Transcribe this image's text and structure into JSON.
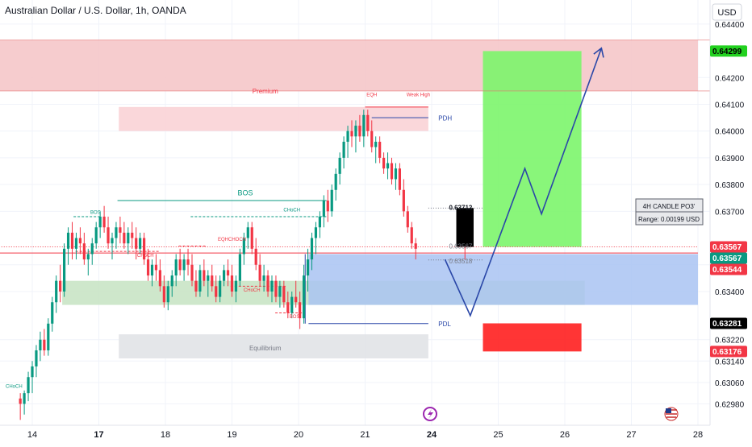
{
  "header": {
    "title": "Australian Dollar / U.S. Dollar, 1h, OANDA",
    "currency_button": "USD"
  },
  "colors": {
    "up": "#089981",
    "down": "#f23645",
    "supply": "#f5c6c9",
    "target": "#7cf56b",
    "stop": "#ff1f1f",
    "demand_blue": "#a9c3f2",
    "demand_green": "#c9e4c5",
    "equilibrium": "#e1e3e7",
    "path": "#2a47a8"
  },
  "chart_data": {
    "type": "candlestick",
    "x_ticks": [
      {
        "t": 0,
        "label": "14"
      },
      {
        "t": 1,
        "label": "17"
      },
      {
        "t": 2,
        "label": "18"
      },
      {
        "t": 3,
        "label": "19"
      },
      {
        "t": 4,
        "label": "20"
      },
      {
        "t": 5,
        "label": "21"
      },
      {
        "t": 6,
        "label": "24"
      },
      {
        "t": 7,
        "label": "25"
      },
      {
        "t": 8,
        "label": "26"
      },
      {
        "t": 9,
        "label": "27"
      },
      {
        "t": 10,
        "label": "28"
      }
    ],
    "y_ticks": [
      0.6298,
      0.6306,
      0.6314,
      0.6322,
      0.634,
      0.635,
      0.637,
      0.638,
      0.639,
      0.64,
      0.641,
      0.642,
      0.644
    ],
    "ylim": [
      0.629,
      0.6449
    ],
    "candles": [
      {
        "t": -0.18,
        "o": 0.63,
        "h": 0.6302,
        "l": 0.6292,
        "c": 0.6298
      },
      {
        "t": -0.12,
        "o": 0.6298,
        "h": 0.6303,
        "l": 0.6294,
        "c": 0.6302
      },
      {
        "t": -0.06,
        "o": 0.6302,
        "h": 0.631,
        "l": 0.6299,
        "c": 0.6308
      },
      {
        "t": 0.0,
        "o": 0.6308,
        "h": 0.6314,
        "l": 0.6302,
        "c": 0.6312
      },
      {
        "t": 0.06,
        "o": 0.6312,
        "h": 0.632,
        "l": 0.6308,
        "c": 0.6318
      },
      {
        "t": 0.12,
        "o": 0.6318,
        "h": 0.6325,
        "l": 0.6314,
        "c": 0.6322
      },
      {
        "t": 0.18,
        "o": 0.6322,
        "h": 0.6326,
        "l": 0.6316,
        "c": 0.6318
      },
      {
        "t": 0.24,
        "o": 0.6318,
        "h": 0.633,
        "l": 0.6316,
        "c": 0.6328
      },
      {
        "t": 0.3,
        "o": 0.6328,
        "h": 0.6338,
        "l": 0.6325,
        "c": 0.6336
      },
      {
        "t": 0.36,
        "o": 0.6336,
        "h": 0.6346,
        "l": 0.6332,
        "c": 0.6344
      },
      {
        "t": 0.42,
        "o": 0.6344,
        "h": 0.635,
        "l": 0.6336,
        "c": 0.634
      },
      {
        "t": 0.48,
        "o": 0.634,
        "h": 0.6358,
        "l": 0.6338,
        "c": 0.6356
      },
      {
        "t": 0.54,
        "o": 0.6356,
        "h": 0.6364,
        "l": 0.635,
        "c": 0.6362
      },
      {
        "t": 0.6,
        "o": 0.6362,
        "h": 0.6366,
        "l": 0.6352,
        "c": 0.6356
      },
      {
        "t": 0.66,
        "o": 0.6356,
        "h": 0.6362,
        "l": 0.6352,
        "c": 0.636
      },
      {
        "t": 0.72,
        "o": 0.636,
        "h": 0.6364,
        "l": 0.6354,
        "c": 0.6358
      },
      {
        "t": 0.78,
        "o": 0.6358,
        "h": 0.6362,
        "l": 0.635,
        "c": 0.6352
      },
      {
        "t": 0.84,
        "o": 0.6352,
        "h": 0.6356,
        "l": 0.6346,
        "c": 0.6354
      },
      {
        "t": 0.9,
        "o": 0.6354,
        "h": 0.636,
        "l": 0.635,
        "c": 0.6358
      },
      {
        "t": 0.96,
        "o": 0.6358,
        "h": 0.6366,
        "l": 0.6356,
        "c": 0.6364
      },
      {
        "t": 1.02,
        "o": 0.6364,
        "h": 0.637,
        "l": 0.636,
        "c": 0.6368
      },
      {
        "t": 1.08,
        "o": 0.6368,
        "h": 0.6372,
        "l": 0.6362,
        "c": 0.6364
      },
      {
        "t": 1.14,
        "o": 0.6364,
        "h": 0.6368,
        "l": 0.6356,
        "c": 0.6358
      },
      {
        "t": 1.2,
        "o": 0.6358,
        "h": 0.6362,
        "l": 0.6352,
        "c": 0.636
      },
      {
        "t": 1.26,
        "o": 0.636,
        "h": 0.6366,
        "l": 0.6356,
        "c": 0.6364
      },
      {
        "t": 1.32,
        "o": 0.6364,
        "h": 0.6368,
        "l": 0.6358,
        "c": 0.6362
      },
      {
        "t": 1.38,
        "o": 0.6362,
        "h": 0.6366,
        "l": 0.6356,
        "c": 0.6358
      },
      {
        "t": 1.44,
        "o": 0.6358,
        "h": 0.6364,
        "l": 0.6354,
        "c": 0.6362
      },
      {
        "t": 1.5,
        "o": 0.6362,
        "h": 0.6366,
        "l": 0.6356,
        "c": 0.636
      },
      {
        "t": 1.56,
        "o": 0.636,
        "h": 0.6364,
        "l": 0.6352,
        "c": 0.6356
      },
      {
        "t": 1.62,
        "o": 0.6356,
        "h": 0.6362,
        "l": 0.6354,
        "c": 0.636
      },
      {
        "t": 1.68,
        "o": 0.636,
        "h": 0.6362,
        "l": 0.635,
        "c": 0.6352
      },
      {
        "t": 1.74,
        "o": 0.6352,
        "h": 0.6356,
        "l": 0.6344,
        "c": 0.6346
      },
      {
        "t": 1.8,
        "o": 0.6346,
        "h": 0.6352,
        "l": 0.6342,
        "c": 0.635
      },
      {
        "t": 1.86,
        "o": 0.635,
        "h": 0.6354,
        "l": 0.6344,
        "c": 0.6348
      },
      {
        "t": 1.92,
        "o": 0.6348,
        "h": 0.6352,
        "l": 0.634,
        "c": 0.6342
      },
      {
        "t": 1.98,
        "o": 0.6342,
        "h": 0.6346,
        "l": 0.6334,
        "c": 0.6336
      },
      {
        "t": 2.04,
        "o": 0.6336,
        "h": 0.6344,
        "l": 0.6333,
        "c": 0.6342
      },
      {
        "t": 2.1,
        "o": 0.6342,
        "h": 0.6348,
        "l": 0.6338,
        "c": 0.6346
      },
      {
        "t": 2.16,
        "o": 0.6346,
        "h": 0.6354,
        "l": 0.6342,
        "c": 0.6352
      },
      {
        "t": 2.22,
        "o": 0.6352,
        "h": 0.6356,
        "l": 0.6346,
        "c": 0.6348
      },
      {
        "t": 2.28,
        "o": 0.6348,
        "h": 0.6354,
        "l": 0.6344,
        "c": 0.6352
      },
      {
        "t": 2.34,
        "o": 0.6352,
        "h": 0.6356,
        "l": 0.6346,
        "c": 0.635
      },
      {
        "t": 2.4,
        "o": 0.635,
        "h": 0.6354,
        "l": 0.6342,
        "c": 0.6344
      },
      {
        "t": 2.46,
        "o": 0.6344,
        "h": 0.6348,
        "l": 0.6338,
        "c": 0.634
      },
      {
        "t": 2.52,
        "o": 0.634,
        "h": 0.635,
        "l": 0.6338,
        "c": 0.6348
      },
      {
        "t": 2.58,
        "o": 0.6348,
        "h": 0.6352,
        "l": 0.6342,
        "c": 0.6344
      },
      {
        "t": 2.64,
        "o": 0.6344,
        "h": 0.6348,
        "l": 0.6338,
        "c": 0.6346
      },
      {
        "t": 2.7,
        "o": 0.6346,
        "h": 0.635,
        "l": 0.634,
        "c": 0.6342
      },
      {
        "t": 2.76,
        "o": 0.6342,
        "h": 0.6346,
        "l": 0.6336,
        "c": 0.6338
      },
      {
        "t": 2.82,
        "o": 0.6338,
        "h": 0.6346,
        "l": 0.6336,
        "c": 0.6344
      },
      {
        "t": 2.88,
        "o": 0.6344,
        "h": 0.635,
        "l": 0.6342,
        "c": 0.6348
      },
      {
        "t": 2.94,
        "o": 0.6348,
        "h": 0.6352,
        "l": 0.6342,
        "c": 0.6346
      },
      {
        "t": 3.0,
        "o": 0.6346,
        "h": 0.635,
        "l": 0.6338,
        "c": 0.634
      },
      {
        "t": 3.06,
        "o": 0.634,
        "h": 0.6346,
        "l": 0.6336,
        "c": 0.6344
      },
      {
        "t": 3.12,
        "o": 0.6344,
        "h": 0.6356,
        "l": 0.6342,
        "c": 0.6354
      },
      {
        "t": 3.18,
        "o": 0.6354,
        "h": 0.6362,
        "l": 0.635,
        "c": 0.636
      },
      {
        "t": 3.24,
        "o": 0.636,
        "h": 0.6366,
        "l": 0.6356,
        "c": 0.6364
      },
      {
        "t": 3.3,
        "o": 0.6364,
        "h": 0.6366,
        "l": 0.6354,
        "c": 0.6356
      },
      {
        "t": 3.36,
        "o": 0.6356,
        "h": 0.636,
        "l": 0.6348,
        "c": 0.635
      },
      {
        "t": 3.42,
        "o": 0.635,
        "h": 0.6354,
        "l": 0.6342,
        "c": 0.6344
      },
      {
        "t": 3.48,
        "o": 0.6344,
        "h": 0.635,
        "l": 0.634,
        "c": 0.6346
      },
      {
        "t": 3.54,
        "o": 0.6346,
        "h": 0.6348,
        "l": 0.6338,
        "c": 0.634
      },
      {
        "t": 3.6,
        "o": 0.634,
        "h": 0.6346,
        "l": 0.6336,
        "c": 0.6344
      },
      {
        "t": 3.66,
        "o": 0.6344,
        "h": 0.6346,
        "l": 0.6336,
        "c": 0.6338
      },
      {
        "t": 3.72,
        "o": 0.6338,
        "h": 0.6344,
        "l": 0.6334,
        "c": 0.6342
      },
      {
        "t": 3.78,
        "o": 0.6342,
        "h": 0.6344,
        "l": 0.6334,
        "c": 0.6336
      },
      {
        "t": 3.84,
        "o": 0.6336,
        "h": 0.634,
        "l": 0.633,
        "c": 0.6332
      },
      {
        "t": 3.9,
        "o": 0.6332,
        "h": 0.634,
        "l": 0.633,
        "c": 0.6338
      },
      {
        "t": 3.96,
        "o": 0.6338,
        "h": 0.6344,
        "l": 0.6334,
        "c": 0.6336
      },
      {
        "t": 4.02,
        "o": 0.6336,
        "h": 0.634,
        "l": 0.6326,
        "c": 0.633
      },
      {
        "t": 4.08,
        "o": 0.633,
        "h": 0.635,
        "l": 0.6328,
        "c": 0.6346
      },
      {
        "t": 4.14,
        "o": 0.6346,
        "h": 0.6356,
        "l": 0.634,
        "c": 0.6352
      },
      {
        "t": 4.2,
        "o": 0.6352,
        "h": 0.6362,
        "l": 0.6348,
        "c": 0.636
      },
      {
        "t": 4.26,
        "o": 0.636,
        "h": 0.6366,
        "l": 0.6354,
        "c": 0.6364
      },
      {
        "t": 4.32,
        "o": 0.6364,
        "h": 0.637,
        "l": 0.636,
        "c": 0.6368
      },
      {
        "t": 4.38,
        "o": 0.6368,
        "h": 0.6376,
        "l": 0.6364,
        "c": 0.6374
      },
      {
        "t": 4.44,
        "o": 0.6374,
        "h": 0.6378,
        "l": 0.6366,
        "c": 0.637
      },
      {
        "t": 4.5,
        "o": 0.637,
        "h": 0.638,
        "l": 0.6368,
        "c": 0.6378
      },
      {
        "t": 4.56,
        "o": 0.6378,
        "h": 0.6386,
        "l": 0.6374,
        "c": 0.6384
      },
      {
        "t": 4.62,
        "o": 0.6384,
        "h": 0.6392,
        "l": 0.638,
        "c": 0.639
      },
      {
        "t": 4.68,
        "o": 0.639,
        "h": 0.6398,
        "l": 0.6386,
        "c": 0.6396
      },
      {
        "t": 4.74,
        "o": 0.6396,
        "h": 0.6402,
        "l": 0.639,
        "c": 0.64
      },
      {
        "t": 4.8,
        "o": 0.64,
        "h": 0.6404,
        "l": 0.6394,
        "c": 0.6398
      },
      {
        "t": 4.86,
        "o": 0.6398,
        "h": 0.6404,
        "l": 0.6392,
        "c": 0.6402
      },
      {
        "t": 4.92,
        "o": 0.6402,
        "h": 0.6406,
        "l": 0.6396,
        "c": 0.6398
      },
      {
        "t": 4.98,
        "o": 0.6398,
        "h": 0.6408,
        "l": 0.6394,
        "c": 0.6406
      },
      {
        "t": 5.04,
        "o": 0.6406,
        "h": 0.6408,
        "l": 0.6398,
        "c": 0.64
      },
      {
        "t": 5.1,
        "o": 0.64,
        "h": 0.6404,
        "l": 0.6392,
        "c": 0.6394
      },
      {
        "t": 5.16,
        "o": 0.6394,
        "h": 0.6398,
        "l": 0.6388,
        "c": 0.6396
      },
      {
        "t": 5.22,
        "o": 0.6396,
        "h": 0.6398,
        "l": 0.6388,
        "c": 0.639
      },
      {
        "t": 5.28,
        "o": 0.639,
        "h": 0.6392,
        "l": 0.6384,
        "c": 0.6386
      },
      {
        "t": 5.34,
        "o": 0.6386,
        "h": 0.6392,
        "l": 0.6382,
        "c": 0.6388
      },
      {
        "t": 5.4,
        "o": 0.6388,
        "h": 0.639,
        "l": 0.638,
        "c": 0.6382
      },
      {
        "t": 5.46,
        "o": 0.6382,
        "h": 0.6388,
        "l": 0.6378,
        "c": 0.6386
      },
      {
        "t": 5.52,
        "o": 0.6386,
        "h": 0.6388,
        "l": 0.6376,
        "c": 0.6378
      },
      {
        "t": 5.58,
        "o": 0.6378,
        "h": 0.6382,
        "l": 0.6368,
        "c": 0.637
      },
      {
        "t": 5.64,
        "o": 0.637,
        "h": 0.6372,
        "l": 0.6362,
        "c": 0.6364
      },
      {
        "t": 5.7,
        "o": 0.6364,
        "h": 0.6366,
        "l": 0.6356,
        "c": 0.6358
      },
      {
        "t": 5.76,
        "o": 0.6358,
        "h": 0.636,
        "l": 0.6352,
        "c": 0.6356
      }
    ],
    "current_price": 0.63567,
    "price_labels": [
      {
        "value": 0.64299,
        "text": "0.64299",
        "bg": "#22d11f",
        "fg": "#000000"
      },
      {
        "value": 0.63567,
        "text": "0.63567",
        "bg": "#f23645",
        "fg": "#ffffff"
      },
      {
        "value": 0.63567,
        "text": "0.63567",
        "bg": "#089981",
        "fg": "#ffffff"
      },
      {
        "value": 0.63544,
        "text": "0.63544",
        "bg": "#f23645",
        "fg": "#ffffff"
      },
      {
        "value": 0.63281,
        "text": "0.63281",
        "bg": "#000000",
        "fg": "#ffffff"
      },
      {
        "value": 0.63176,
        "text": "0.63176",
        "bg": "#f23645",
        "fg": "#ffffff"
      }
    ],
    "zones": [
      {
        "name": "supply-zone",
        "t0": -0.5,
        "t1": 10.0,
        "y0": 0.6415,
        "y1": 0.6434,
        "fill": "#f5c6c9"
      },
      {
        "name": "premium-zone",
        "t0": 1.3,
        "t1": 5.95,
        "y0": 0.64,
        "y1": 0.6409,
        "fill": "#f9d3d6"
      },
      {
        "name": "equilibrium-zone",
        "t0": 1.3,
        "t1": 5.95,
        "y0": 0.6315,
        "y1": 0.6324,
        "fill": "#e1e3e7"
      },
      {
        "name": "demand-zone-green",
        "t0": 0.45,
        "t1": 8.3,
        "y0": 0.6335,
        "y1": 0.6344,
        "fill": "#c9e4c5"
      },
      {
        "name": "demand-zone-blue",
        "t0": 4.15,
        "t1": 10.0,
        "y0": 0.6335,
        "y1": 0.6354,
        "fill": "#a9c3f2"
      },
      {
        "name": "target-zone",
        "t0": 6.77,
        "t1": 8.25,
        "y0": 0.63567,
        "y1": 0.64299,
        "fill": "#7cf56b"
      },
      {
        "name": "stop-zone",
        "t0": 6.77,
        "t1": 8.25,
        "y0": 0.63176,
        "y1": 0.63281,
        "fill": "#ff1f1f"
      }
    ],
    "annotations": {
      "premium": "Premium",
      "equilibrium": "Equilibrium",
      "pdh": "PDH",
      "pdl": "PDL",
      "eqh": "EQH",
      "weak_high": "Weak High",
      "bos_big": "BOS",
      "bos_left": "BOS",
      "choch_top": "CHoCH",
      "choch_left": "CHoCH",
      "choch_mid": "CHoCH",
      "eqhchoch": "EQHCHOCH",
      "choch_bottom": "CHoCH",
      "bos_bottom": "BOS",
      "choch_edge": "CHoCH",
      "fvg_top": "0.63712",
      "fvg_mid": "0.63567",
      "fvg_bottom": "0.63518",
      "info_line1": "4H CANDLE PO3'",
      "info_line2": "Range: 0.00199 USD"
    },
    "projection": [
      {
        "t": 6.2,
        "y": 0.6352
      },
      {
        "t": 6.58,
        "y": 0.6331
      },
      {
        "t": 7.4,
        "y": 0.6386
      },
      {
        "t": 7.65,
        "y": 0.6369
      },
      {
        "t": 8.55,
        "y": 0.6431
      }
    ]
  }
}
